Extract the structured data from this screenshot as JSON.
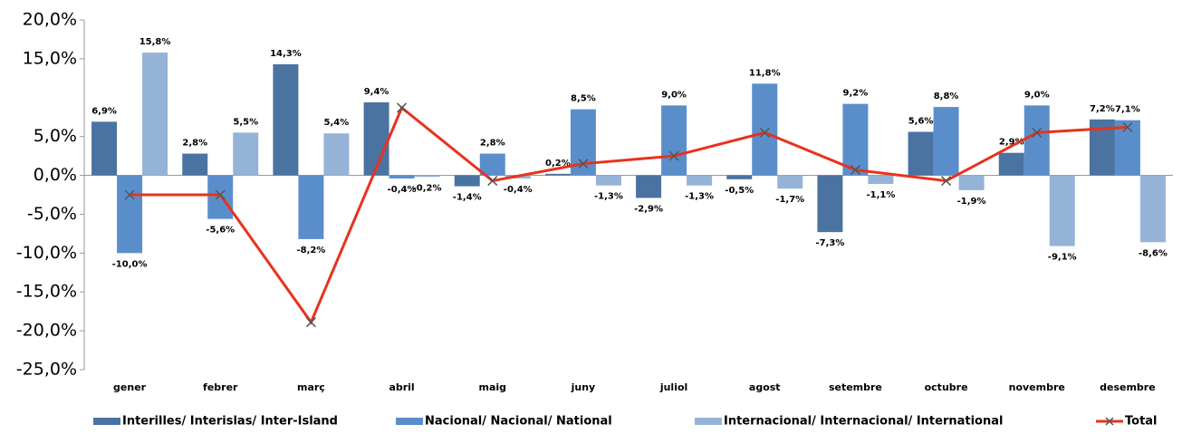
{
  "chart_data": {
    "type": "bar",
    "categories": [
      "gener",
      "febrer",
      "març",
      "abril",
      "maig",
      "juny",
      "juliol",
      "agost",
      "setembre",
      "octubre",
      "novembre",
      "desembre"
    ],
    "series": [
      {
        "name": "Interilles/ Interislas/ Inter-Island",
        "color": "#4a73a2",
        "values": [
          6.9,
          2.8,
          14.3,
          9.4,
          -1.4,
          0.2,
          -2.9,
          -0.5,
          -7.3,
          5.6,
          2.9,
          7.2
        ],
        "value_labels": [
          "6,9%",
          "2,8%",
          "14,3%",
          "9,4%",
          "-1,4%",
          "0,2%",
          "-2,9%",
          "-0,5%",
          "-7,3%",
          "5,6%",
          "2,9%",
          "7,2%"
        ]
      },
      {
        "name": "Nacional/ Nacional/ National",
        "color": "#5a8ecb",
        "values": [
          -10.0,
          -5.6,
          -8.2,
          -0.4,
          2.8,
          8.5,
          9.0,
          11.8,
          9.2,
          8.8,
          9.0,
          7.1
        ],
        "value_labels": [
          "-10,0%",
          "-5,6%",
          "-8,2%",
          "-0,4%",
          "2,8%",
          "8,5%",
          "9,0%",
          "11,8%",
          "9,2%",
          "8,8%",
          "9,0%",
          "7,1%"
        ]
      },
      {
        "name": "Internacional/ Internacional/ International",
        "color": "#95b3d7",
        "values": [
          15.8,
          5.5,
          5.4,
          -0.2,
          -0.4,
          -1.3,
          -1.3,
          -1.7,
          -1.1,
          -1.9,
          -9.1,
          -8.6
        ],
        "value_labels": [
          "15,8%",
          "5,5%",
          "5,4%",
          "-0,2%",
          "-0,4%",
          "-1,3%",
          "-1,3%",
          "-1,7%",
          "-1,1%",
          "-1,9%",
          "-9,1%",
          "-8,6%"
        ]
      },
      {
        "name": "Total",
        "color": "#e8321e",
        "type": "line",
        "values": [
          -2.5,
          -2.5,
          -18.9,
          8.7,
          -0.7,
          1.5,
          2.5,
          5.5,
          0.7,
          -0.7,
          5.5,
          6.2
        ]
      }
    ],
    "ylim": [
      -25,
      20
    ],
    "yticks": [
      {
        "value": 20,
        "label": "20,0%"
      },
      {
        "value": 15,
        "label": "15,0%"
      },
      {
        "value": 5,
        "label": "5,0%"
      },
      {
        "value": 0,
        "label": "0,0%"
      },
      {
        "value": -5,
        "label": "-5,0%"
      },
      {
        "value": -10,
        "label": "-10,0%"
      },
      {
        "value": -15,
        "label": "-15,0%"
      },
      {
        "value": -20,
        "label": "-20,0%"
      },
      {
        "value": -25,
        "label": "-25,0%"
      }
    ]
  }
}
